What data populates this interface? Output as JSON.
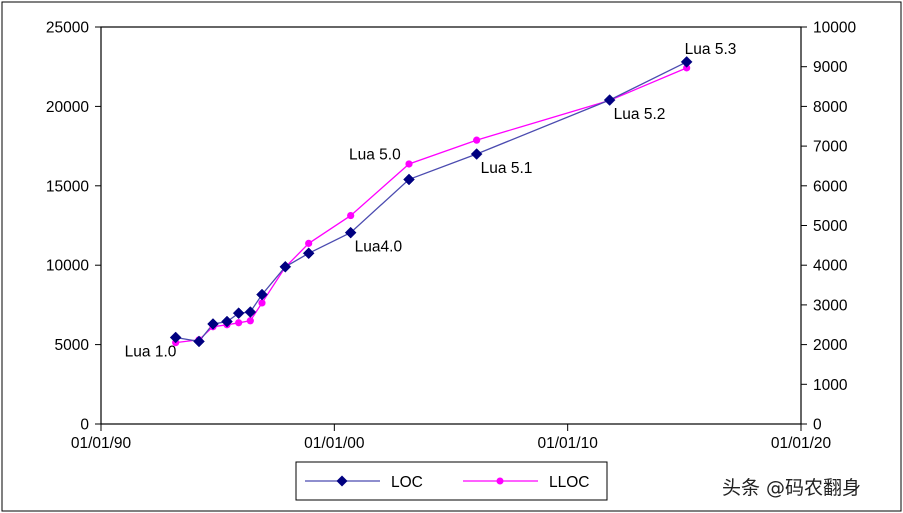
{
  "chart_data": {
    "type": "line",
    "xlabel": "",
    "ylabel_left": "",
    "ylabel_right": "",
    "x_ticks": [
      "01/01/90",
      "01/01/00",
      "01/01/10",
      "01/01/20"
    ],
    "xlim": [
      1990,
      2020
    ],
    "ylim_left": [
      0,
      25000
    ],
    "ylim_right": [
      0,
      10000
    ],
    "y_ticks_left": [
      "0",
      "5000",
      "10000",
      "15000",
      "20000",
      "25000"
    ],
    "y_ticks_right": [
      "0",
      "1000",
      "2000",
      "3000",
      "4000",
      "5000",
      "6000",
      "7000",
      "8000",
      "9000",
      "10000"
    ],
    "grid": false,
    "legend_position": "bottom-center",
    "series": [
      {
        "name": "LOC",
        "axis": "left",
        "color": "#000080",
        "marker": "diamond",
        "line_color": "#4b4bb0",
        "x": [
          1993.2,
          1994.2,
          1994.8,
          1995.4,
          1995.9,
          1996.4,
          1996.9,
          1997.9,
          1998.9,
          2000.7,
          2003.2,
          2006.1,
          2011.8,
          2015.1
        ],
        "y": [
          5450,
          5200,
          6300,
          6450,
          6980,
          7050,
          8150,
          9900,
          10750,
          12050,
          15400,
          17000,
          20400,
          22800
        ]
      },
      {
        "name": "LLOC",
        "axis": "right",
        "color": "#ff00ff",
        "marker": "circle",
        "line_color": "#ff00ff",
        "x": [
          1993.2,
          1994.2,
          1994.8,
          1995.4,
          1995.9,
          1996.4,
          1996.9,
          1997.9,
          1998.9,
          2000.7,
          2003.2,
          2006.1,
          2011.8,
          2015.1
        ],
        "y": [
          2050,
          2120,
          2450,
          2500,
          2550,
          2600,
          3050,
          3950,
          4550,
          5250,
          6550,
          7150,
          8150,
          8970
        ]
      }
    ],
    "annotations": [
      {
        "text": "Lua 1.0",
        "x": 1993.2,
        "y": 5450,
        "axis": "left",
        "anchor": "below-left"
      },
      {
        "text": "Lua4.0",
        "x": 2000.7,
        "y": 12050,
        "axis": "left",
        "anchor": "below-right"
      },
      {
        "text": "Lua 5.0",
        "x": 2003.2,
        "y": 15400,
        "axis": "left",
        "anchor": "above-left"
      },
      {
        "text": "Lua 5.1",
        "x": 2006.1,
        "y": 17000,
        "axis": "left",
        "anchor": "below-right"
      },
      {
        "text": "Lua 5.2",
        "x": 2011.8,
        "y": 20400,
        "axis": "left",
        "anchor": "below-right"
      },
      {
        "text": "Lua 5.3",
        "x": 2015.1,
        "y": 22800,
        "axis": "left",
        "anchor": "above"
      }
    ]
  },
  "watermark": "头条 @码农翻身"
}
